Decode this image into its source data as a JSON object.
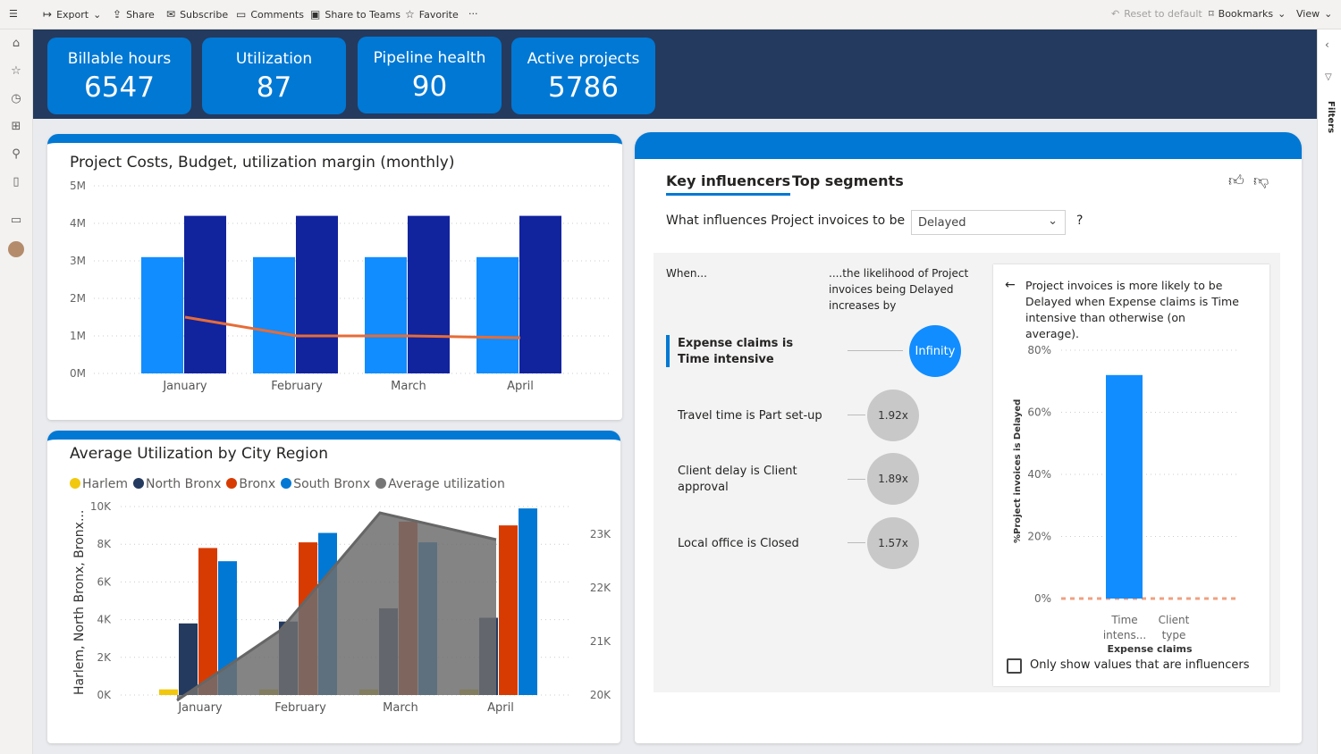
{
  "toolbar": {
    "export": "Export",
    "share": "Share",
    "subscribe": "Subscribe",
    "comments": "Comments",
    "share_teams": "Share to Teams",
    "favorite": "Favorite",
    "more": "···",
    "reset": "Reset to default",
    "bookmarks": "Bookmarks",
    "view": "View"
  },
  "filters_label": "Filters",
  "kpis": [
    {
      "title": "Billable hours",
      "value": "6547"
    },
    {
      "title": "Utilization",
      "value": "87"
    },
    {
      "title": "Pipeline health",
      "value": "90"
    },
    {
      "title": "Active projects",
      "value": "5786"
    }
  ],
  "colors": {
    "kpi": "#0078d4",
    "band": "#243a5e",
    "light_bar": "#118dff",
    "dark_bar": "#12239e",
    "line": "#e66c37"
  },
  "chart_data": [
    {
      "type": "bar",
      "title": "Project Costs, Budget, utilization margin (monthly)",
      "categories": [
        "January",
        "February",
        "March",
        "April"
      ],
      "ylim": [
        0,
        5
      ],
      "yticks": [
        "0M",
        "1M",
        "2M",
        "3M",
        "4M",
        "5M"
      ],
      "grid": true,
      "series": [
        {
          "type": "bar",
          "color": "#118dff",
          "values": [
            3.1,
            3.1,
            3.1,
            3.1
          ]
        },
        {
          "type": "bar",
          "color": "#12239e",
          "values": [
            4.2,
            4.2,
            4.2,
            4.2
          ]
        },
        {
          "type": "line",
          "color": "#e66c37",
          "values": [
            1.5,
            1.0,
            1.0,
            0.95
          ]
        }
      ]
    },
    {
      "type": "bar",
      "title": "Average Utilization by City Region",
      "ylabel": "Harlem, North Bronx, Bronx...",
      "categories": [
        "January",
        "February",
        "March",
        "April"
      ],
      "ylim": [
        0,
        10
      ],
      "yticks": [
        "0K",
        "2K",
        "4K",
        "6K",
        "8K",
        "10K"
      ],
      "y2lim": [
        20,
        23.3
      ],
      "y2ticks": [
        "20K",
        "21K",
        "22K",
        "23K"
      ],
      "legend": "top-left",
      "series": [
        {
          "name": "Harlem",
          "color": "#f2c80f",
          "values": [
            0.3,
            0.3,
            0.3,
            0.3
          ]
        },
        {
          "name": "North Bronx",
          "color": "#243a5e",
          "values": [
            3.8,
            3.9,
            4.6,
            4.1
          ]
        },
        {
          "name": "Bronx",
          "color": "#d83b01",
          "values": [
            7.8,
            8.1,
            9.2,
            9.0
          ]
        },
        {
          "name": "South Bronx",
          "color": "#0078d4",
          "values": [
            7.1,
            8.6,
            8.1,
            9.9
          ]
        },
        {
          "name": "Average utilization",
          "color": "#767676",
          "type": "area",
          "axis": "right",
          "values": [
            19.9,
            21.2,
            23.4,
            22.9
          ]
        }
      ]
    },
    {
      "type": "bar",
      "ylabel": "%Project invoices is Delayed",
      "xlabel": "Expense claims",
      "categories": [
        "Time intens...",
        "Client type"
      ],
      "values": [
        72,
        null
      ],
      "ylim": [
        0,
        80
      ],
      "yticks": [
        "0%",
        "20%",
        "40%",
        "60%",
        "80%"
      ],
      "baseline": 0
    }
  ],
  "ki": {
    "tabs": [
      "Key influencers",
      "Top segments"
    ],
    "question": "What influences Project invoices to be",
    "dropdown": "Delayed",
    "help": "?",
    "when": "When...",
    "likelihood": "....the likelihood of Project invoices being Delayed increases by",
    "rows": [
      {
        "label": "Expense claims is Time intensive",
        "value": "Infinity"
      },
      {
        "label": "Travel time is Part set-up",
        "value": "1.92x"
      },
      {
        "label": "Client delay is Client approval",
        "value": "1.89x"
      },
      {
        "label": "Local office is Closed",
        "value": "1.57x"
      }
    ],
    "detail": "Project invoices is more likely to be Delayed when Expense claims is Time intensive than otherwise (on average).",
    "checkbox": "Only show values that are influencers",
    "checked": false
  }
}
